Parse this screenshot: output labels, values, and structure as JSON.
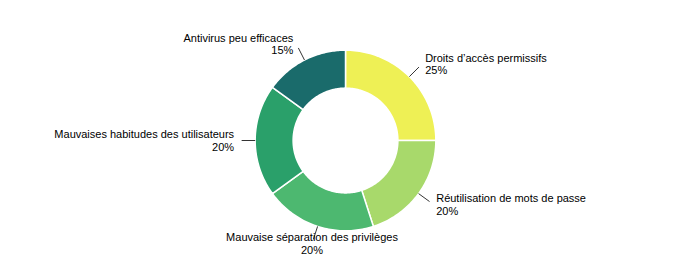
{
  "chart_data": {
    "type": "donut",
    "categories": [
      "Droits d’accès permissifs",
      "Réutilisation de mots de passe",
      "Mauvaise séparation des privilèges",
      "Mauvaises habitudes des utilisateurs",
      "Antivirus peu efficaces"
    ],
    "values": [
      25,
      20,
      20,
      20,
      15
    ],
    "value_labels": [
      "25%",
      "20%",
      "20%",
      "20%",
      "15%"
    ],
    "colors": [
      "#eef055",
      "#a8d96b",
      "#4db870",
      "#2aa06a",
      "#1a6b6b"
    ],
    "data_labels": true
  }
}
